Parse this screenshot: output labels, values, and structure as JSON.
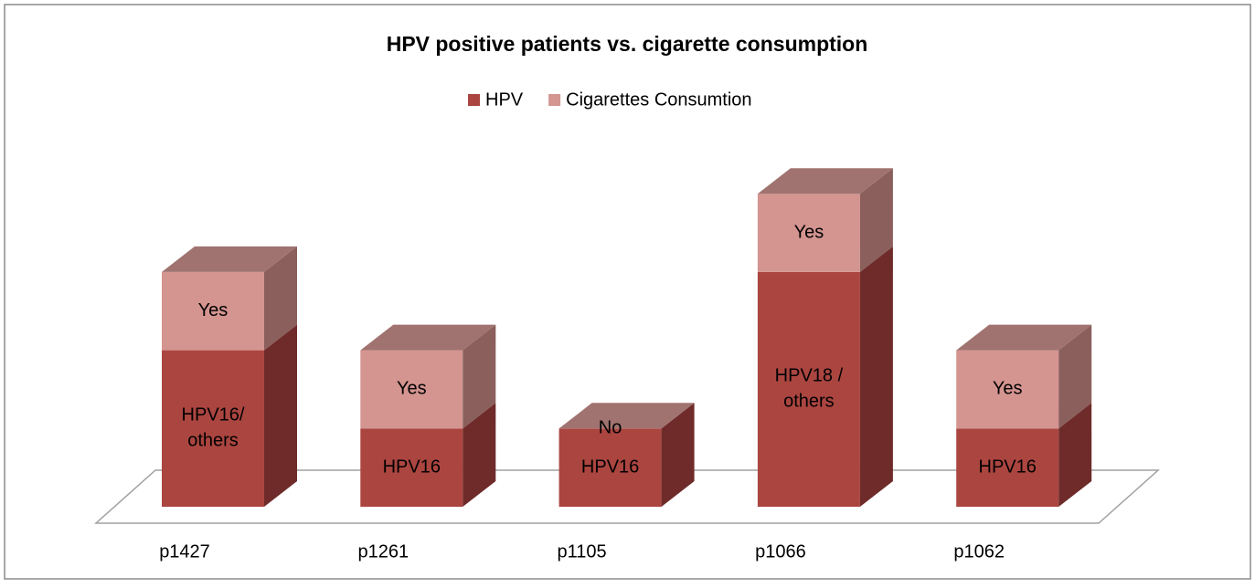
{
  "chart_data": {
    "type": "bar3d_stacked",
    "title": "HPV positive patients vs. cigarette consumption",
    "categories": [
      "p1427",
      "p1261",
      "p1105",
      "p1066",
      "p1062"
    ],
    "ylim": [
      0,
      4
    ],
    "series": [
      {
        "name": "HPV",
        "color": "#ab4540",
        "side_color": "#6e2b29",
        "top_color": "#8f4a46",
        "values": [
          2,
          1,
          1,
          3,
          1
        ],
        "segment_labels": [
          [
            "HPV16/",
            "others"
          ],
          [
            "HPV16"
          ],
          [
            "HPV16"
          ],
          [
            "HPV18 /",
            "others"
          ],
          [
            "HPV16"
          ]
        ]
      },
      {
        "name": "Cigarettes Consumtion",
        "color": "#d49490",
        "side_color": "#8a5f5c",
        "top_color": "#a07370",
        "values": [
          1,
          1,
          0,
          1,
          1
        ],
        "segment_labels": [
          [
            "Yes"
          ],
          [
            "Yes"
          ],
          [
            "No"
          ],
          [
            "Yes"
          ],
          [
            "Yes"
          ]
        ]
      }
    ],
    "legend": "top"
  }
}
